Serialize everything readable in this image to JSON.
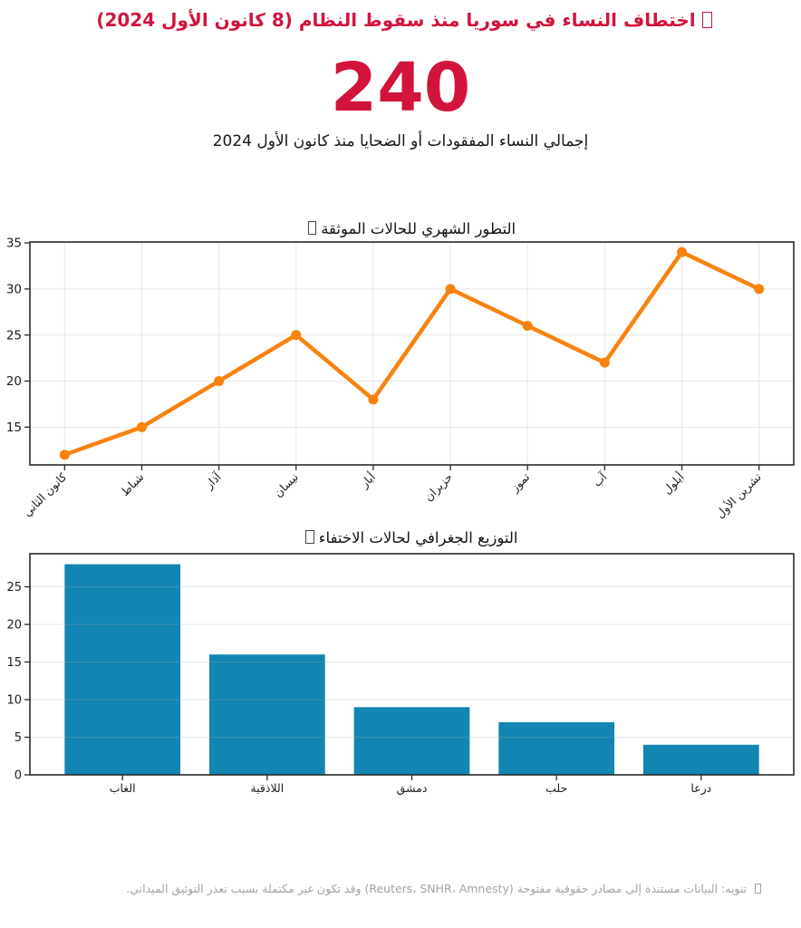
{
  "header": {
    "icon": "missing-glyph-box",
    "title": "اختطاف النساء في سوريا منذ سقوط النظام (8 كانون الأول 2024)",
    "total": "240",
    "subtitle": "إجمالي النساء المفقودات أو الضحايا منذ كانون الأول 2024"
  },
  "colors": {
    "accent_red": "#d2143c",
    "line_orange": "#f8820d",
    "bar_blue": "#1285b2",
    "grid_gray": "#b0b0b0",
    "spine_dark": "#2b2b2b",
    "footer_gray": "#a3a3a3"
  },
  "chart_data": [
    {
      "type": "line",
      "title": "التطور الشهري للحالات الموثقة",
      "title_icon": "missing-glyph-box",
      "categories": [
        "كانون الثاني",
        "شباط",
        "آذار",
        "نيسان",
        "أيار",
        "حزيران",
        "تموز",
        "آب",
        "أيلول",
        "تشرين الأول"
      ],
      "values": [
        12,
        15,
        20,
        25,
        18,
        30,
        26,
        22,
        34,
        30
      ],
      "yticks": [
        15,
        20,
        25,
        30,
        35
      ],
      "ylim": [
        10.9,
        35.1
      ],
      "grid": "both",
      "legend": "none",
      "line_color": "#f8820d"
    },
    {
      "type": "bar",
      "title": "التوزيع الجغرافي لحالات الاختفاء",
      "title_icon": "missing-glyph-box",
      "categories": [
        "الغاب",
        "اللاذقية",
        "دمشق",
        "حلب",
        "درعا"
      ],
      "values": [
        28,
        16,
        9,
        7,
        4
      ],
      "yticks": [
        0,
        5,
        10,
        15,
        20,
        25
      ],
      "ylim": [
        0,
        29.4
      ],
      "grid": "y",
      "legend": "none",
      "bar_color": "#1285b2"
    }
  ],
  "footer": {
    "icon": "missing-glyph-box",
    "note": "تنويه: البيانات مستندة إلى مصادر حقوقية مفتوحة (Reuters، SNHR، Amnesty) وقد تكون غير مكتملة بسبب تعذر التوثيق الميداني."
  }
}
